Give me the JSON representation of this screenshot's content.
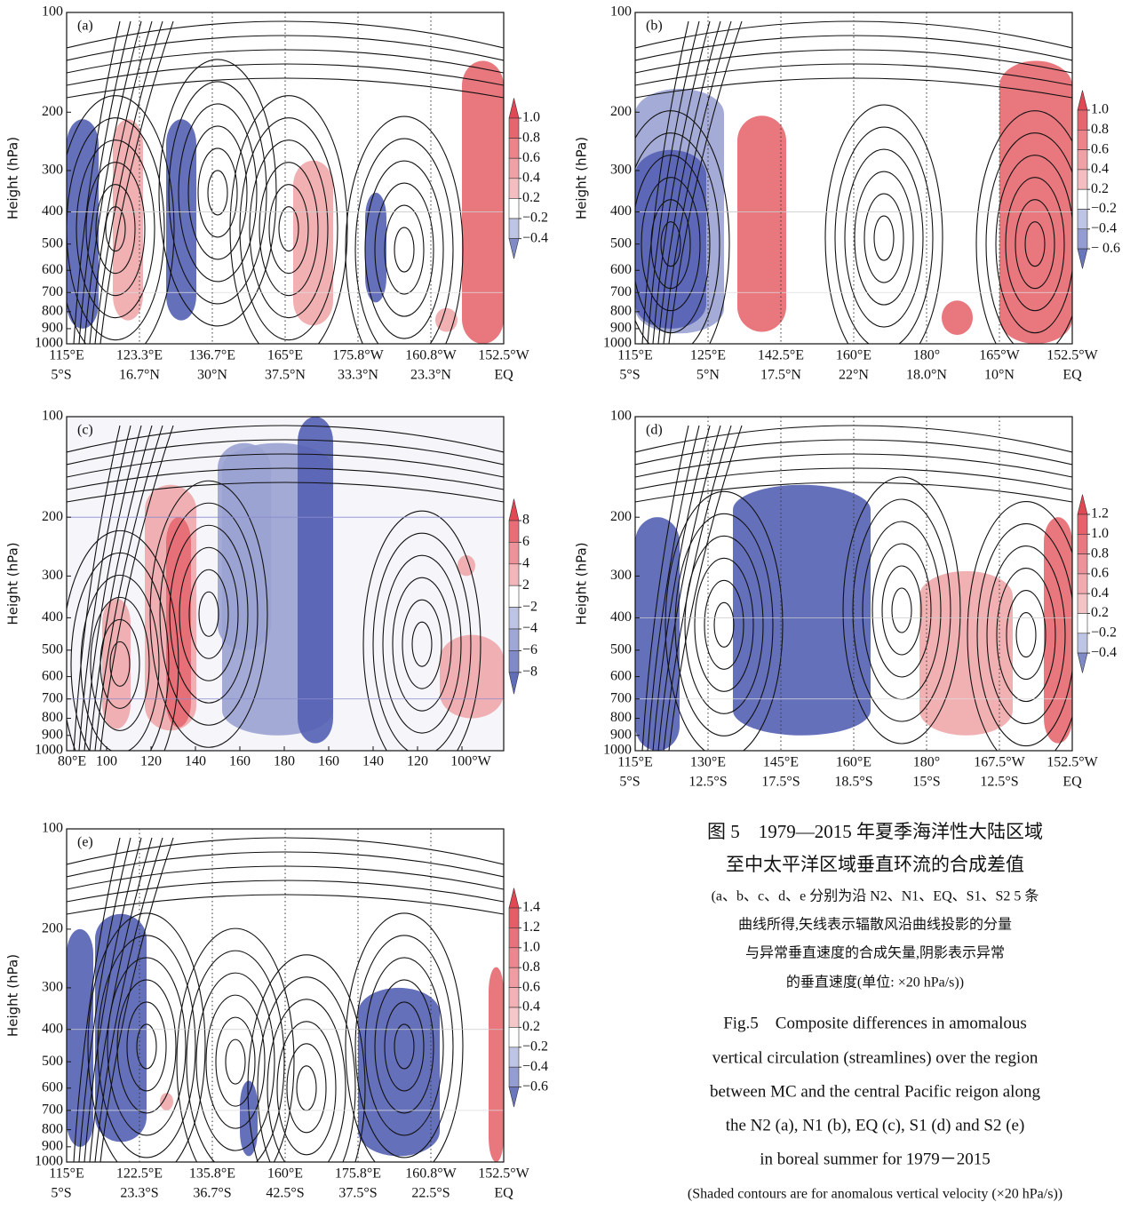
{
  "panels": [
    {
      "label": "(a)",
      "y_label": "Height (hPa)",
      "ylim": [
        100,
        1000
      ],
      "yticks": [
        100,
        200,
        300,
        400,
        500,
        600,
        700,
        800,
        900,
        1000
      ],
      "xticks": [
        {
          "lon": "115°E",
          "lat": "5°S"
        },
        {
          "lon": "123.3°E",
          "lat": "16.7°N"
        },
        {
          "lon": "136.7°E",
          "lat": "30°N"
        },
        {
          "lon": "165°E",
          "lat": "37.5°N"
        },
        {
          "lon": "175.8°W",
          "lat": "33.3°N"
        },
        {
          "lon": "160.8°W",
          "lat": "23.3°N"
        },
        {
          "lon": "152.5°W",
          "lat": "EQ"
        }
      ],
      "colorbar": [
        {
          "value": 1,
          "label": "1.0"
        },
        0.8,
        0.6,
        0.4,
        0.2,
        {
          "value": -0.2,
          "label": "−0.2"
        },
        {
          "value": -0.4,
          "label": "−0.4"
        }
      ]
    },
    {
      "label": "(b)",
      "y_label": "Height (hPa)",
      "ylim": [
        100,
        1000
      ],
      "yticks": [
        100,
        200,
        300,
        400,
        500,
        600,
        700,
        800,
        900,
        1000
      ],
      "xticks": [
        {
          "lon": "115°E",
          "lat": "5°S"
        },
        {
          "lon": "125°E",
          "lat": "5°N"
        },
        {
          "lon": "142.5°E",
          "lat": "17.5°N"
        },
        {
          "lon": "160°E",
          "lat": "22°N"
        },
        {
          "lon": "180°",
          "lat": "18.0°N"
        },
        {
          "lon": "165°W",
          "lat": "10°N"
        },
        {
          "lon": "152.5°W",
          "lat": "EQ"
        }
      ],
      "colorbar": [
        {
          "value": 1,
          "label": "1.0"
        },
        0.8,
        0.6,
        0.4,
        0.2,
        {
          "value": -0.2,
          "label": "−0.2"
        },
        {
          "value": -0.4,
          "label": "−0.4"
        },
        {
          "value": -0.6,
          "label": "− 0.6"
        }
      ]
    },
    {
      "label": "(c)",
      "y_label": "Height (hPa)",
      "ylim": [
        100,
        1000
      ],
      "yticks": [
        100,
        200,
        300,
        400,
        500,
        600,
        700,
        800,
        900,
        1000
      ],
      "xticks": [
        "80°E",
        "100",
        "120",
        "140",
        "160",
        "180",
        "160",
        "140",
        "120",
        "100°W"
      ],
      "colorbar": [
        8,
        6,
        4,
        2,
        {
          "value": -2,
          "label": "−2"
        },
        {
          "value": -4,
          "label": "−4"
        },
        {
          "value": -6,
          "label": "−6"
        },
        {
          "value": -8,
          "label": "−8"
        }
      ]
    },
    {
      "label": "(d)",
      "y_label": "Height (hPa)",
      "ylim": [
        100,
        1000
      ],
      "yticks": [
        100,
        200,
        300,
        400,
        500,
        600,
        700,
        800,
        900,
        1000
      ],
      "xticks": [
        {
          "lon": "115°E",
          "lat": "5°S"
        },
        {
          "lon": "130°E",
          "lat": "12.5°S"
        },
        {
          "lon": "145°E",
          "lat": "17.5°S"
        },
        {
          "lon": "160°E",
          "lat": "18.5°S"
        },
        {
          "lon": "180°",
          "lat": "15°S"
        },
        {
          "lon": "167.5°W",
          "lat": "12.5°S"
        },
        {
          "lon": "152.5°W",
          "lat": "EQ"
        }
      ],
      "colorbar": [
        1.2,
        {
          "value": 1,
          "label": "1.0"
        },
        0.8,
        0.6,
        0.4,
        0.2,
        {
          "value": -0.2,
          "label": "−0.2"
        },
        {
          "value": -0.4,
          "label": "−0.4"
        }
      ]
    },
    {
      "label": "(e)",
      "y_label": "Height (hPa)",
      "ylim": [
        100,
        1000
      ],
      "yticks": [
        100,
        200,
        300,
        400,
        500,
        600,
        700,
        800,
        900,
        1000
      ],
      "xticks": [
        {
          "lon": "115°E",
          "lat": "5°S"
        },
        {
          "lon": "122.5°E",
          "lat": "23.3°S"
        },
        {
          "lon": "135.8°E",
          "lat": "36.7°S"
        },
        {
          "lon": "160°E",
          "lat": "42.5°S"
        },
        {
          "lon": "175.8°E",
          "lat": "37.5°S"
        },
        {
          "lon": "160.8°W",
          "lat": "22.5°S"
        },
        {
          "lon": "152.5°W",
          "lat": "EQ"
        }
      ],
      "colorbar": [
        1.4,
        1.2,
        {
          "value": 1,
          "label": "1.0"
        },
        0.8,
        0.6,
        0.4,
        0.2,
        {
          "value": -0.2,
          "label": "−0.2"
        },
        {
          "value": -0.4,
          "label": "−0.4"
        },
        {
          "value": -0.6,
          "label": "−0.6"
        }
      ]
    }
  ],
  "caption": {
    "zh": [
      "图 5　1979—2015 年夏季海洋性大陆区域",
      "至中太平洋区域垂直环流的合成差值",
      "(a、b、c、d、e 分别为沿 N2、N1、EQ、S1、S2 5 条",
      "曲线所得,矢线表示辐散风沿曲线投影的分量",
      "与异常垂直速度的合成矢量,阴影表示异常",
      "的垂直速度(单位: ×20 hPa/s))"
    ],
    "en": [
      "Fig.5　Composite differences in amomalous",
      "vertical circulation (streamlines) over the region",
      "between MC and the central Pacific reigon along",
      "the N2 (a), N1 (b), EQ (c), S1 (d) and S2 (e)",
      "in boreal summer for 1979－2015",
      "(Shaded contours are for anomalous vertical velocity (×20 hPa/s))"
    ]
  }
}
